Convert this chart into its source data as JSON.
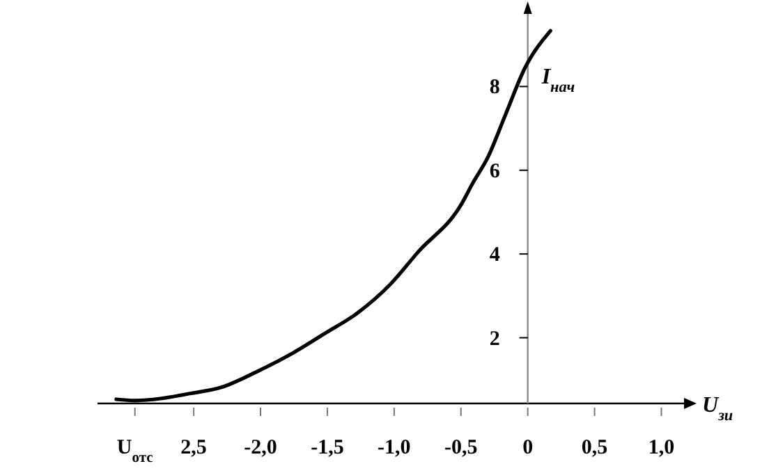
{
  "chart_data": {
    "type": "line",
    "xlabel": "U$_{зи}$",
    "ylabel": "I$_{нач}$",
    "xlim": [
      -3.22,
      1.18
    ],
    "ylim": [
      0.43,
      9.9
    ],
    "xticks": [
      {
        "value": -2.94,
        "label": "U$_{отс}$"
      },
      {
        "value": -2.5,
        "label": "2,5"
      },
      {
        "value": -2.0,
        "label": "-2,0"
      },
      {
        "value": -1.5,
        "label": "-1,5"
      },
      {
        "value": -1.0,
        "label": "-1,0"
      },
      {
        "value": -0.5,
        "label": "-0,5"
      },
      {
        "value": 0,
        "label": "0"
      },
      {
        "value": 0.5,
        "label": "0,5"
      },
      {
        "value": 1.0,
        "label": "1,0"
      }
    ],
    "yticks": [
      2,
      4,
      6,
      8
    ],
    "grid": false,
    "marker": "none",
    "line_style": "solid",
    "series": [
      {
        "color": "#000000",
        "x": [
          -3.08,
          -2.94,
          -2.52,
          -2.28,
          -2.02,
          -1.76,
          -1.52,
          -1.27,
          -1.03,
          -0.82,
          -0.5,
          -0.41,
          -0.3,
          -0.17,
          -0.02,
          0.17
        ],
        "values": [
          0.53,
          0.5,
          0.67,
          0.83,
          1.2,
          1.63,
          2.1,
          2.6,
          3.27,
          4.05,
          5.17,
          5.7,
          6.3,
          7.3,
          8.45,
          9.33
        ]
      }
    ]
  }
}
